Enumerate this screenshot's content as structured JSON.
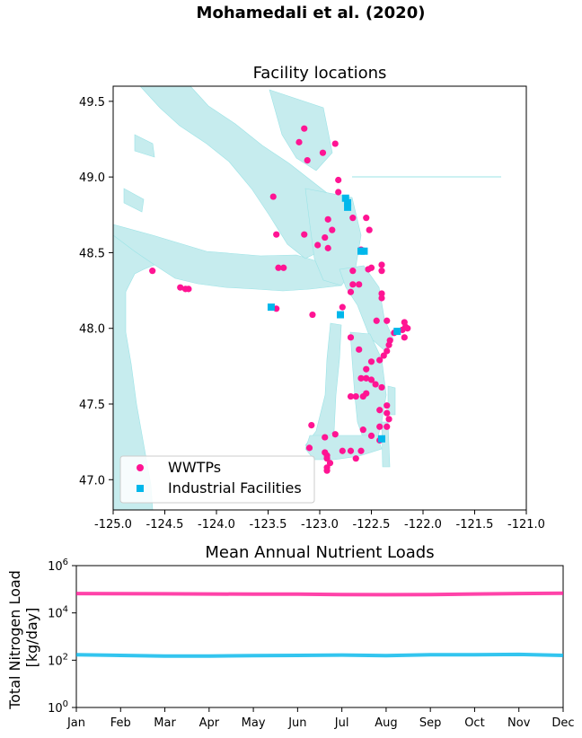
{
  "figure": {
    "suptitle": "Mohamedali et al. (2020)"
  },
  "colors": {
    "wwtp": "#ff1493",
    "industrial": "#00b7eb",
    "water": "#c6ecee",
    "water_edge": "#9be3e6"
  },
  "chart_data": [
    {
      "type": "scatter",
      "title": "Facility locations",
      "xlim": [
        -125.0,
        -121.0
      ],
      "ylim": [
        46.8,
        49.6
      ],
      "xticks": [
        "-125.0",
        "-124.5",
        "-124.0",
        "-123.5",
        "-123.0",
        "-122.5",
        "-122.0",
        "-121.5",
        "-121.0"
      ],
      "yticks": [
        "47.0",
        "47.5",
        "48.0",
        "48.5",
        "49.0",
        "49.5"
      ],
      "legend": {
        "position": "lower-left",
        "entries": [
          "WWTPs",
          "Industrial Facilities"
        ]
      },
      "series": [
        {
          "name": "WWTPs",
          "marker": "circle",
          "points": [
            [
              -123.15,
              49.32
            ],
            [
              -123.2,
              49.23
            ],
            [
              -122.85,
              49.22
            ],
            [
              -123.12,
              49.11
            ],
            [
              -122.97,
              49.16
            ],
            [
              -122.82,
              48.98
            ],
            [
              -122.82,
              48.9
            ],
            [
              -123.45,
              48.87
            ],
            [
              -122.92,
              48.72
            ],
            [
              -122.68,
              48.73
            ],
            [
              -122.55,
              48.73
            ],
            [
              -122.88,
              48.65
            ],
            [
              -122.52,
              48.65
            ],
            [
              -123.42,
              48.62
            ],
            [
              -123.15,
              48.62
            ],
            [
              -122.95,
              48.6
            ],
            [
              -123.02,
              48.55
            ],
            [
              -122.92,
              48.53
            ],
            [
              -122.6,
              48.52
            ],
            [
              -122.4,
              48.42
            ],
            [
              -122.5,
              48.4
            ],
            [
              -122.53,
              48.39
            ],
            [
              -122.4,
              48.38
            ],
            [
              -122.68,
              48.38
            ],
            [
              -123.4,
              48.4
            ],
            [
              -123.35,
              48.4
            ],
            [
              -124.62,
              48.38
            ],
            [
              -124.35,
              48.27
            ],
            [
              -124.3,
              48.26
            ],
            [
              -124.27,
              48.26
            ],
            [
              -122.68,
              48.29
            ],
            [
              -122.62,
              48.29
            ],
            [
              -122.7,
              48.24
            ],
            [
              -122.4,
              48.23
            ],
            [
              -122.4,
              48.2
            ],
            [
              -123.42,
              48.13
            ],
            [
              -123.07,
              48.09
            ],
            [
              -122.78,
              48.14
            ],
            [
              -122.45,
              48.05
            ],
            [
              -122.35,
              48.05
            ],
            [
              -122.18,
              48.04
            ],
            [
              -122.17,
              48.01
            ],
            [
              -122.15,
              48.0
            ],
            [
              -122.2,
              47.99
            ],
            [
              -122.28,
              47.97
            ],
            [
              -122.18,
              47.94
            ],
            [
              -122.7,
              47.94
            ],
            [
              -122.32,
              47.92
            ],
            [
              -122.33,
              47.89
            ],
            [
              -122.62,
              47.86
            ],
            [
              -122.35,
              47.85
            ],
            [
              -122.38,
              47.82
            ],
            [
              -122.42,
              47.79
            ],
            [
              -122.5,
              47.78
            ],
            [
              -122.55,
              47.73
            ],
            [
              -122.6,
              47.67
            ],
            [
              -122.55,
              47.67
            ],
            [
              -122.5,
              47.66
            ],
            [
              -122.46,
              47.63
            ],
            [
              -122.4,
              47.61
            ],
            [
              -122.55,
              47.57
            ],
            [
              -122.58,
              47.55
            ],
            [
              -122.65,
              47.55
            ],
            [
              -122.7,
              47.55
            ],
            [
              -122.35,
              47.49
            ],
            [
              -122.42,
              47.46
            ],
            [
              -122.35,
              47.44
            ],
            [
              -122.33,
              47.4
            ],
            [
              -122.35,
              47.35
            ],
            [
              -122.42,
              47.35
            ],
            [
              -122.58,
              47.33
            ],
            [
              -123.08,
              47.36
            ],
            [
              -122.85,
              47.3
            ],
            [
              -122.95,
              47.28
            ],
            [
              -122.5,
              47.29
            ],
            [
              -122.42,
              47.26
            ],
            [
              -123.1,
              47.21
            ],
            [
              -122.95,
              47.18
            ],
            [
              -122.93,
              47.16
            ],
            [
              -122.93,
              47.14
            ],
            [
              -122.9,
              47.11
            ],
            [
              -122.93,
              47.08
            ],
            [
              -122.93,
              47.06
            ],
            [
              -122.78,
              47.19
            ],
            [
              -122.7,
              47.19
            ],
            [
              -122.6,
              47.19
            ],
            [
              -122.65,
              47.14
            ]
          ]
        },
        {
          "name": "Industrial Facilities",
          "marker": "square",
          "points": [
            [
              -122.75,
              48.86
            ],
            [
              -122.73,
              48.83
            ],
            [
              -122.73,
              48.8
            ],
            [
              -122.6,
              48.51
            ],
            [
              -122.57,
              48.51
            ],
            [
              -123.47,
              48.14
            ],
            [
              -122.8,
              48.09
            ],
            [
              -122.25,
              47.98
            ],
            [
              -122.4,
              47.27
            ]
          ]
        }
      ]
    },
    {
      "type": "line",
      "title": "Mean Annual Nutrient Loads",
      "ylabel": "Total Nitrogen Load\n[kg/day]",
      "yscale": "log",
      "ylim": [
        1,
        1000000
      ],
      "yticks": [
        {
          "base": "10",
          "exp": "0"
        },
        {
          "base": "10",
          "exp": "2"
        },
        {
          "base": "10",
          "exp": "4"
        },
        {
          "base": "10",
          "exp": "6"
        }
      ],
      "categories": [
        "Jan",
        "Feb",
        "Mar",
        "Apr",
        "May",
        "Jun",
        "Jul",
        "Aug",
        "Sep",
        "Oct",
        "Nov",
        "Dec"
      ],
      "series": [
        {
          "values": [
            66000,
            65000,
            64000,
            63000,
            62000,
            62000,
            60000,
            59000,
            60000,
            63000,
            66000,
            68000
          ]
        },
        {
          "values": [
            170,
            160,
            150,
            150,
            155,
            160,
            165,
            155,
            170,
            170,
            175,
            160
          ]
        }
      ]
    }
  ]
}
